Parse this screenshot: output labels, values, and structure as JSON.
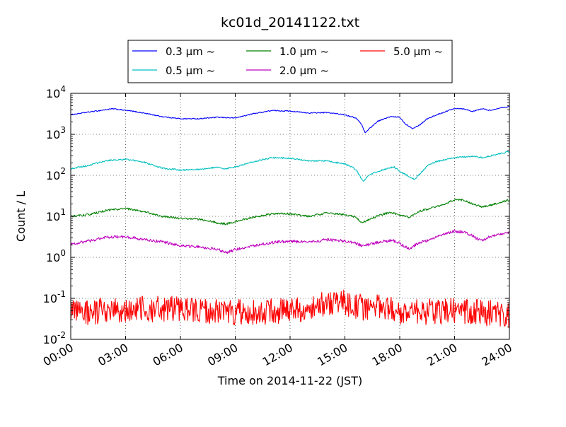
{
  "chart_data": {
    "type": "line",
    "title": "kc01d_20141122.txt",
    "xlabel": "Time on 2014-11-22 (JST)",
    "ylabel": "Count / L",
    "yscale": "log",
    "xlim": [
      0,
      24
    ],
    "ylim": [
      0.01,
      10000
    ],
    "x_ticks": [
      {
        "value": 0,
        "label": "00:00"
      },
      {
        "value": 3,
        "label": "03:00"
      },
      {
        "value": 6,
        "label": "06:00"
      },
      {
        "value": 9,
        "label": "09:00"
      },
      {
        "value": 12,
        "label": "12:00"
      },
      {
        "value": 15,
        "label": "15:00"
      },
      {
        "value": 18,
        "label": "18:00"
      },
      {
        "value": 21,
        "label": "21:00"
      },
      {
        "value": 24,
        "label": "24:00"
      }
    ],
    "y_ticks": [
      {
        "value": 0.01,
        "base": "10",
        "exp": "-2"
      },
      {
        "value": 0.1,
        "base": "10",
        "exp": "-1"
      },
      {
        "value": 1,
        "base": "10",
        "exp": "0"
      },
      {
        "value": 10,
        "base": "10",
        "exp": "1"
      },
      {
        "value": 100,
        "base": "10",
        "exp": "2"
      },
      {
        "value": 1000,
        "base": "10",
        "exp": "3"
      },
      {
        "value": 10000,
        "base": "10",
        "exp": "4"
      }
    ],
    "grid": true,
    "legend_position": "top-center, outside plot",
    "series": [
      {
        "name": "0.3 µm ~",
        "color": "#0000ff",
        "noise": 0.012,
        "points": [
          [
            0,
            3000
          ],
          [
            1,
            3500
          ],
          [
            2.3,
            4200
          ],
          [
            3.3,
            3700
          ],
          [
            4,
            3300
          ],
          [
            5,
            2700
          ],
          [
            6,
            2400
          ],
          [
            7,
            2400
          ],
          [
            8,
            2600
          ],
          [
            9,
            2500
          ],
          [
            10,
            3200
          ],
          [
            11,
            3800
          ],
          [
            12,
            3700
          ],
          [
            13,
            3300
          ],
          [
            14,
            3400
          ],
          [
            15,
            3000
          ],
          [
            15.6,
            2500
          ],
          [
            15.9,
            1800
          ],
          [
            16.1,
            1100
          ],
          [
            16.4,
            1450
          ],
          [
            16.8,
            2100
          ],
          [
            17.5,
            2700
          ],
          [
            18,
            2600
          ],
          [
            18.3,
            1800
          ],
          [
            18.7,
            1400
          ],
          [
            19.1,
            1700
          ],
          [
            19.5,
            2400
          ],
          [
            20.2,
            3200
          ],
          [
            21,
            4300
          ],
          [
            21.5,
            4200
          ],
          [
            22,
            3600
          ],
          [
            22.5,
            4200
          ],
          [
            23,
            3800
          ],
          [
            23.5,
            4500
          ],
          [
            24,
            4700
          ]
        ]
      },
      {
        "name": "0.5 µm ~",
        "color": "#00bfbf",
        "noise": 0.018,
        "points": [
          [
            0,
            145
          ],
          [
            1,
            175
          ],
          [
            2,
            230
          ],
          [
            3,
            245
          ],
          [
            4,
            210
          ],
          [
            5,
            150
          ],
          [
            6,
            135
          ],
          [
            7,
            140
          ],
          [
            8,
            155
          ],
          [
            8.5,
            145
          ],
          [
            9,
            160
          ],
          [
            10,
            215
          ],
          [
            11,
            270
          ],
          [
            12,
            260
          ],
          [
            13,
            225
          ],
          [
            14,
            225
          ],
          [
            15,
            190
          ],
          [
            15.6,
            140
          ],
          [
            16,
            70
          ],
          [
            16.3,
            100
          ],
          [
            16.8,
            125
          ],
          [
            17.3,
            145
          ],
          [
            17.7,
            160
          ],
          [
            18,
            125
          ],
          [
            18.5,
            95
          ],
          [
            18.8,
            80
          ],
          [
            19.2,
            120
          ],
          [
            19.5,
            170
          ],
          [
            20,
            215
          ],
          [
            21,
            270
          ],
          [
            22,
            290
          ],
          [
            22.5,
            270
          ],
          [
            23,
            300
          ],
          [
            24,
            380
          ]
        ]
      },
      {
        "name": "1.0 µm ~",
        "color": "#008000",
        "noise": 0.025,
        "points": [
          [
            0,
            10
          ],
          [
            1,
            11
          ],
          [
            2,
            14
          ],
          [
            3,
            15.5
          ],
          [
            4,
            13
          ],
          [
            5,
            10
          ],
          [
            6,
            9
          ],
          [
            7,
            8.5
          ],
          [
            8,
            7
          ],
          [
            8.5,
            6.5
          ],
          [
            9,
            7.5
          ],
          [
            10,
            9.5
          ],
          [
            11,
            11.5
          ],
          [
            12,
            11.5
          ],
          [
            13,
            10
          ],
          [
            14,
            12
          ],
          [
            15,
            11
          ],
          [
            15.6,
            9.5
          ],
          [
            15.9,
            7
          ],
          [
            16.2,
            8
          ],
          [
            17,
            11
          ],
          [
            17.5,
            12.5
          ],
          [
            18,
            10.5
          ],
          [
            18.5,
            9.5
          ],
          [
            19,
            13
          ],
          [
            20,
            17
          ],
          [
            21,
            25
          ],
          [
            21.5,
            25
          ],
          [
            22,
            20
          ],
          [
            22.5,
            17
          ],
          [
            23,
            19
          ],
          [
            24,
            25
          ]
        ]
      },
      {
        "name": "2.0 µm ~",
        "color": "#bf00bf",
        "noise": 0.035,
        "points": [
          [
            0,
            2.1
          ],
          [
            1,
            2.5
          ],
          [
            2,
            3.1
          ],
          [
            3,
            3.2
          ],
          [
            4,
            2.7
          ],
          [
            5,
            2.4
          ],
          [
            6,
            1.9
          ],
          [
            7,
            1.8
          ],
          [
            8,
            1.6
          ],
          [
            8.5,
            1.3
          ],
          [
            9,
            1.55
          ],
          [
            10,
            1.9
          ],
          [
            11,
            2.3
          ],
          [
            12,
            2.5
          ],
          [
            13,
            2.3
          ],
          [
            14,
            2.7
          ],
          [
            15,
            2.5
          ],
          [
            15.6,
            2.2
          ],
          [
            16,
            1.9
          ],
          [
            17,
            2.4
          ],
          [
            17.6,
            2.6
          ],
          [
            18,
            2.2
          ],
          [
            18.5,
            1.6
          ],
          [
            19,
            2.2
          ],
          [
            20,
            3.1
          ],
          [
            21,
            4.4
          ],
          [
            21.5,
            4.1
          ],
          [
            22,
            3.3
          ],
          [
            22.5,
            2.5
          ],
          [
            23,
            3.3
          ],
          [
            24,
            4
          ]
        ]
      },
      {
        "name": "5.0 µm ~",
        "color": "#ff0000",
        "noise": 0.32,
        "points": [
          [
            0,
            0.042
          ],
          [
            3,
            0.055
          ],
          [
            6,
            0.055
          ],
          [
            9,
            0.045
          ],
          [
            12,
            0.05
          ],
          [
            13,
            0.05
          ],
          [
            14.5,
            0.09
          ],
          [
            16,
            0.06
          ],
          [
            17,
            0.065
          ],
          [
            18,
            0.045
          ],
          [
            21,
            0.05
          ],
          [
            24,
            0.04
          ]
        ]
      }
    ]
  }
}
